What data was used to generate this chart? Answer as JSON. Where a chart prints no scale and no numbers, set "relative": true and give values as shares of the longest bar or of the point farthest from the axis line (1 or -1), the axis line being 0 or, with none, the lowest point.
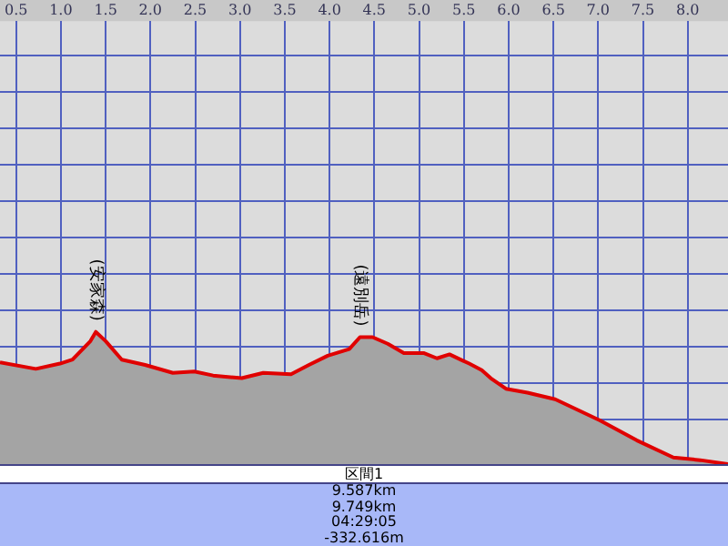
{
  "chart_data": {
    "type": "area",
    "relative": true,
    "grid": true,
    "color": "#e00000",
    "x": [
      0.32,
      0.72,
      0.99,
      1.13,
      1.33,
      1.39,
      1.5,
      1.68,
      1.94,
      2.25,
      2.49,
      2.7,
      3.02,
      3.26,
      3.57,
      3.77,
      3.98,
      4.22,
      4.34,
      4.48,
      4.65,
      4.83,
      5.05,
      5.2,
      5.34,
      5.56,
      5.7,
      5.8,
      5.97,
      6.21,
      6.52,
      7.02,
      7.43,
      7.84,
      8.14,
      8.45
    ],
    "values": [
      0.77,
      0.72,
      0.76,
      0.79,
      0.93,
      1,
      0.93,
      0.79,
      0.75,
      0.69,
      0.7,
      0.67,
      0.65,
      0.69,
      0.68,
      0.75,
      0.82,
      0.87,
      0.96,
      0.96,
      0.91,
      0.84,
      0.84,
      0.8,
      0.83,
      0.76,
      0.71,
      0.65,
      0.57,
      0.54,
      0.49,
      0.33,
      0.18,
      0.05,
      0.03,
      0
    ],
    "xlim": [
      0.32,
      8.45
    ],
    "xticks": [
      0.5,
      {
        "value": 1,
        "label": "1.0"
      },
      1.5,
      {
        "value": 2,
        "label": "2.0"
      },
      2.5,
      {
        "value": 3,
        "label": "3.0"
      },
      3.5,
      {
        "value": 4,
        "label": "4.0"
      },
      4.5,
      {
        "value": 5,
        "label": "5.0"
      },
      5.5,
      {
        "value": 6,
        "label": "6.0"
      },
      6.5,
      {
        "value": 7,
        "label": "7.0"
      },
      7.5,
      {
        "value": 8,
        "label": "8.0"
      }
    ],
    "annotations": [
      {
        "text": "(安家森)",
        "x": 1.39,
        "y": 1
      },
      {
        "text": "(遠別岳)",
        "x": 4.34,
        "y": 0.96
      },
      "区間1",
      "9.587km",
      "9.749km",
      "04:29:05",
      "-332.616m"
    ]
  }
}
